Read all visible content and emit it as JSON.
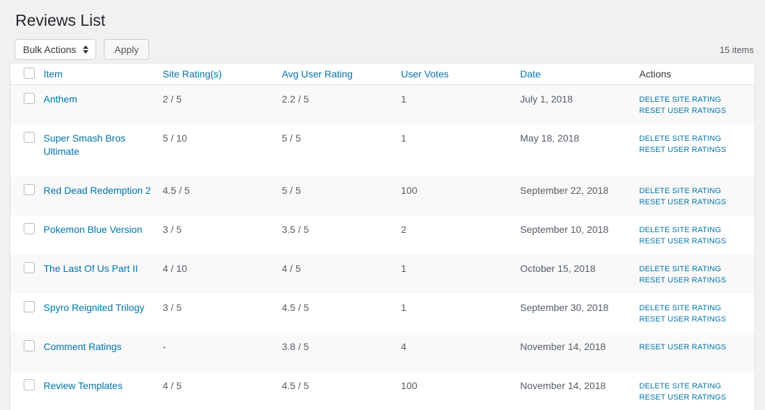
{
  "page": {
    "title": "Reviews List"
  },
  "toolbar": {
    "bulk_actions_label": "Bulk Actions",
    "apply_label": "Apply",
    "items_count": "15 items"
  },
  "table": {
    "columns": [
      {
        "label": "Item"
      },
      {
        "label": "Site Rating(s)"
      },
      {
        "label": "Avg User Rating"
      },
      {
        "label": "User Votes"
      },
      {
        "label": "Date"
      },
      {
        "label": "Actions"
      }
    ],
    "rows": [
      {
        "item": "Anthem",
        "site_rating": "2 / 5",
        "avg_user_rating": "2.2 / 5",
        "user_votes": "1",
        "date": "July 1, 2018",
        "actions": [
          "DELETE SITE RATING",
          "RESET USER RATINGS"
        ]
      },
      {
        "item": "Super Smash Bros Ultimate",
        "site_rating": "5 / 10",
        "avg_user_rating": "5 / 5",
        "user_votes": "1",
        "date": "May 18, 2018",
        "actions": [
          "DELETE SITE RATING",
          "RESET USER RATINGS"
        ]
      },
      {
        "item": "Red Dead Redemption 2",
        "site_rating": "4.5 / 5",
        "avg_user_rating": "5 / 5",
        "user_votes": "100",
        "date": "September 22, 2018",
        "actions": [
          "DELETE SITE RATING",
          "RESET USER RATINGS"
        ]
      },
      {
        "item": "Pokemon Blue Version",
        "site_rating": "3 / 5",
        "avg_user_rating": "3.5 / 5",
        "user_votes": "2",
        "date": "September 10, 2018",
        "actions": [
          "DELETE SITE RATING",
          "RESET USER RATINGS"
        ]
      },
      {
        "item": "The Last Of Us Part II",
        "site_rating": "4 / 10",
        "avg_user_rating": "4 / 5",
        "user_votes": "1",
        "date": "October 15, 2018",
        "actions": [
          "DELETE SITE RATING",
          "RESET USER RATINGS"
        ]
      },
      {
        "item": "Spyro Reignited Trilogy",
        "site_rating": "3 / 5",
        "avg_user_rating": "4.5 / 5",
        "user_votes": "1",
        "date": "September 30, 2018",
        "actions": [
          "DELETE SITE RATING",
          "RESET USER RATINGS"
        ]
      },
      {
        "item": "Comment Ratings",
        "site_rating": "-",
        "avg_user_rating": "3.8 / 5",
        "user_votes": "4",
        "date": "November 14, 2018",
        "actions": [
          "RESET USER RATINGS"
        ]
      },
      {
        "item": "Review Templates",
        "site_rating": "4 / 5",
        "avg_user_rating": "4.5 / 5",
        "user_votes": "100",
        "date": "November 14, 2018",
        "actions": [
          "DELETE SITE RATING",
          "RESET USER RATINGS"
        ]
      }
    ]
  },
  "colors": {
    "page_background": "#f1f1f1",
    "table_background": "#ffffff",
    "row_stripe": "#f9f9f9",
    "border": "#e1e1e1",
    "link": "#0073aa",
    "title_text": "#23282d",
    "body_text": "#555d66"
  }
}
